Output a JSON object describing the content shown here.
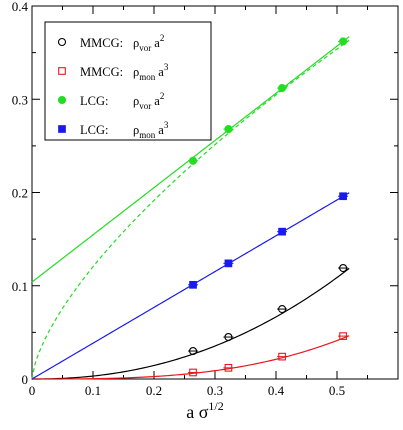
{
  "chart_data": {
    "type": "scatter",
    "title": "",
    "xlabel": {
      "base": "a σ",
      "sup": "1/2"
    },
    "ylabel": "",
    "xlim": [
      0,
      0.6
    ],
    "ylim": [
      0,
      0.4
    ],
    "x_ticks": [
      "0",
      "0.1",
      "0.2",
      "0.3",
      "0.4",
      "0.5"
    ],
    "y_ticks": [
      "0",
      "0.1",
      "0.2",
      "0.3",
      "0.4"
    ],
    "grid": false,
    "legend_position": "top-left",
    "series": [
      {
        "name": "MMCG: ρvor a2",
        "legend": {
          "label": "MMCG:",
          "rho_sub": "vor",
          "power": "2"
        },
        "marker": "circle-open",
        "color": "#000000",
        "x": [
          0.264,
          0.322,
          0.41,
          0.51
        ],
        "y": [
          0.03,
          0.045,
          0.075,
          0.119
        ],
        "fit": {
          "style": "solid",
          "kind": "power",
          "x_from": 0.0,
          "x_to": 0.52,
          "coef": 0.5,
          "exponent": 2.2
        }
      },
      {
        "name": "MMCG: ρmon a3",
        "legend": {
          "label": "MMCG:",
          "rho_sub": "mon",
          "power": "3"
        },
        "marker": "square-open",
        "color": "#e8181c",
        "x": [
          0.264,
          0.322,
          0.41,
          0.51
        ],
        "y": [
          0.007,
          0.012,
          0.024,
          0.046
        ],
        "fit": {
          "style": "solid",
          "kind": "power",
          "x_from": 0.0,
          "x_to": 0.52,
          "coef": 0.33,
          "exponent": 3.0
        }
      },
      {
        "name": "LCG: ρvor a2",
        "legend": {
          "label": "LCG:",
          "rho_sub": "vor",
          "power": "2"
        },
        "marker": "circle-filled",
        "color": "#22dd22",
        "x": [
          0.264,
          0.322,
          0.41,
          0.51
        ],
        "y": [
          0.234,
          0.268,
          0.312,
          0.362
        ],
        "fit": {
          "style": "solid",
          "kind": "linear",
          "x_from": 0.0,
          "x_to": 0.52,
          "intercept": 0.104,
          "slope": 0.506
        },
        "fit2": {
          "style": "dashed",
          "kind": "power",
          "x_from": 0.0,
          "x_to": 0.52,
          "coef": 0.563,
          "exponent": 0.67
        }
      },
      {
        "name": "LCG: ρmon a3",
        "legend": {
          "label": "LCG:",
          "rho_sub": "mon",
          "power": "3"
        },
        "marker": "square-filled",
        "color": "#1a1aee",
        "x": [
          0.264,
          0.322,
          0.41,
          0.51
        ],
        "y": [
          0.101,
          0.124,
          0.158,
          0.196
        ],
        "fit": {
          "style": "solid",
          "kind": "linear",
          "x_from": 0.0,
          "x_to": 0.52,
          "intercept": 0.0,
          "slope": 0.384
        }
      }
    ]
  }
}
